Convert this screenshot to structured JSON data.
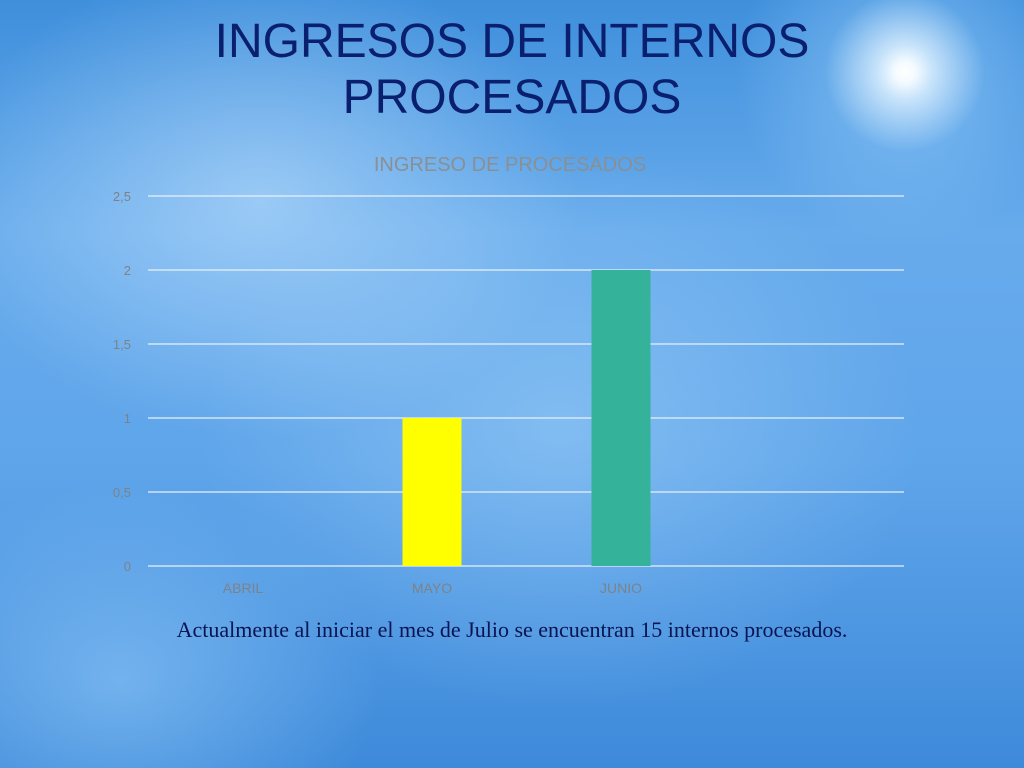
{
  "slide": {
    "title_line1": "INGRESOS DE INTERNOS",
    "title_line2": "PROCESADOS",
    "caption": "Actualmente  al iniciar el mes de Julio se encuentran 15 internos procesados."
  },
  "chart_data": {
    "type": "bar",
    "title": "INGRESO DE PROCESADOS",
    "categories": [
      "ABRIL",
      "MAYO",
      "JUNIO"
    ],
    "values": [
      0,
      1,
      2
    ],
    "bar_colors": [
      "#ffff00",
      "#ffff00",
      "#34b29a"
    ],
    "ylim": [
      0,
      2.5
    ],
    "yticks": [
      0,
      0.5,
      1,
      1.5,
      2,
      2.5
    ],
    "ytick_labels": [
      "0",
      "0,5",
      "1",
      "1,5",
      "2",
      "2,5"
    ],
    "grid": true,
    "legend": "none",
    "xlabel": "",
    "ylabel": ""
  }
}
